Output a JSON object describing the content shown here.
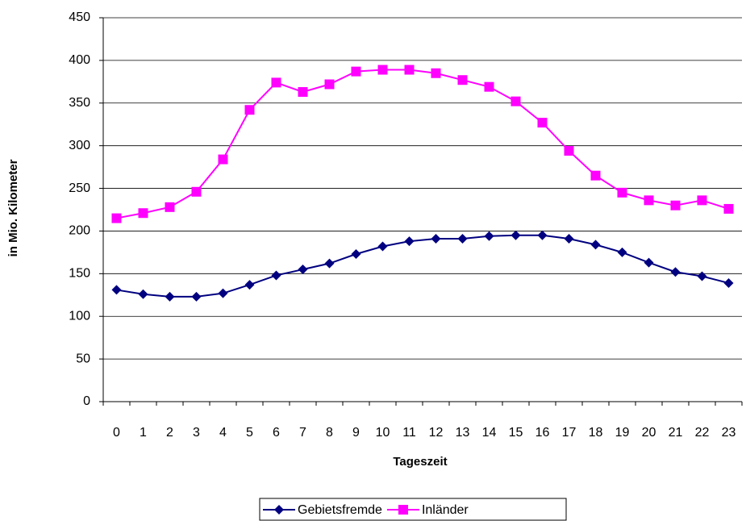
{
  "chart_data": {
    "type": "line",
    "x_label": "Tageszeit",
    "y_label": "in Mio. Kilometer",
    "categories": [
      "0",
      "1",
      "2",
      "3",
      "4",
      "5",
      "6",
      "7",
      "8",
      "9",
      "10",
      "11",
      "12",
      "13",
      "14",
      "15",
      "16",
      "17",
      "18",
      "19",
      "20",
      "21",
      "22",
      "23"
    ],
    "series": [
      {
        "name": "Gebietsfremde",
        "color": "#000080",
        "marker": "diamond",
        "values": [
          131,
          126,
          123,
          123,
          127,
          137,
          148,
          155,
          162,
          173,
          182,
          188,
          191,
          191,
          194,
          195,
          195,
          191,
          184,
          175,
          163,
          152,
          147,
          139
        ]
      },
      {
        "name": "Inländer",
        "color": "#ff00ff",
        "marker": "square",
        "values": [
          215,
          221,
          228,
          246,
          284,
          342,
          374,
          363,
          372,
          387,
          389,
          389,
          385,
          377,
          369,
          352,
          327,
          294,
          265,
          245,
          236,
          230,
          236,
          226
        ]
      }
    ],
    "ylim": [
      0,
      450
    ],
    "yticks": [
      0,
      50,
      100,
      150,
      200,
      250,
      300,
      350,
      400,
      450
    ],
    "grid": true,
    "legend": "bottom"
  }
}
